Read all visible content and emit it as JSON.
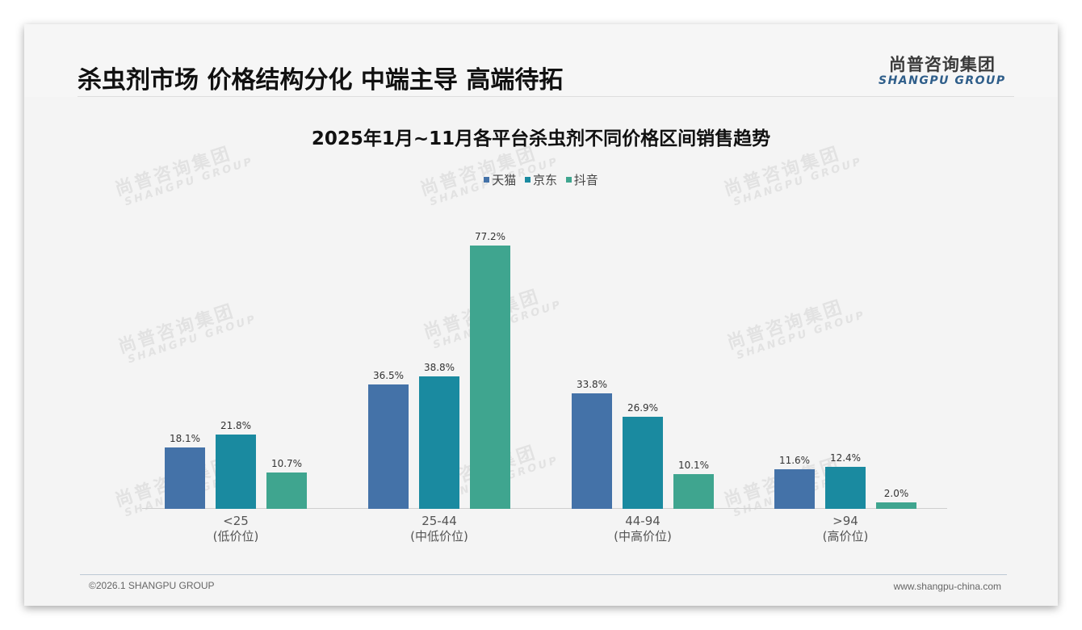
{
  "header": {
    "title": "杀虫剂市场 价格结构分化 中端主导 高端待拓",
    "logo_cn": "尚普咨询集团",
    "logo_en": "SHANGPU GROUP"
  },
  "watermark": {
    "cn": "尚普咨询集团",
    "en": "SHANGPU GROUP"
  },
  "colors": {
    "tmall": "#4472a8",
    "jd": "#1a8aa0",
    "douyin": "#3fa58f"
  },
  "chart_data": {
    "type": "bar",
    "title": "2025年1月~11月各平台杀虫剂不同价格区间销售趋势",
    "xlabel": "",
    "ylabel": "",
    "categories": [
      "<25 (低价位)",
      "25-44 (中低价位)",
      "44-94 (中高价位)",
      ">94 (高价位)"
    ],
    "category_lines": [
      [
        "<25",
        "(低价位)"
      ],
      [
        "25-44",
        "(中低价位)"
      ],
      [
        "44-94",
        "(中高价位)"
      ],
      [
        ">94",
        "(高价位)"
      ]
    ],
    "series": [
      {
        "name": "天猫",
        "color": "#4472a8",
        "values": [
          18.1,
          36.5,
          33.8,
          11.6
        ],
        "labels": [
          "18.1%",
          "36.5%",
          "33.8%",
          "11.6%"
        ]
      },
      {
        "name": "京东",
        "color": "#1a8aa0",
        "values": [
          21.8,
          38.8,
          26.9,
          12.4
        ],
        "labels": [
          "21.8%",
          "38.8%",
          "26.9%",
          "12.4%"
        ]
      },
      {
        "name": "抖音",
        "color": "#3fa58f",
        "values": [
          10.7,
          77.2,
          10.1,
          2.0
        ],
        "labels": [
          "10.7%",
          "77.2%",
          "10.1%",
          "2.0%"
        ]
      }
    ],
    "legend": [
      "天猫",
      "京东",
      "抖音"
    ],
    "legend_position": "top",
    "grid": false,
    "ylim": [
      0,
      80
    ],
    "unit": "%"
  },
  "footer": {
    "copyright": "©2026.1 SHANGPU GROUP",
    "website": "www.shangpu-china.com"
  }
}
